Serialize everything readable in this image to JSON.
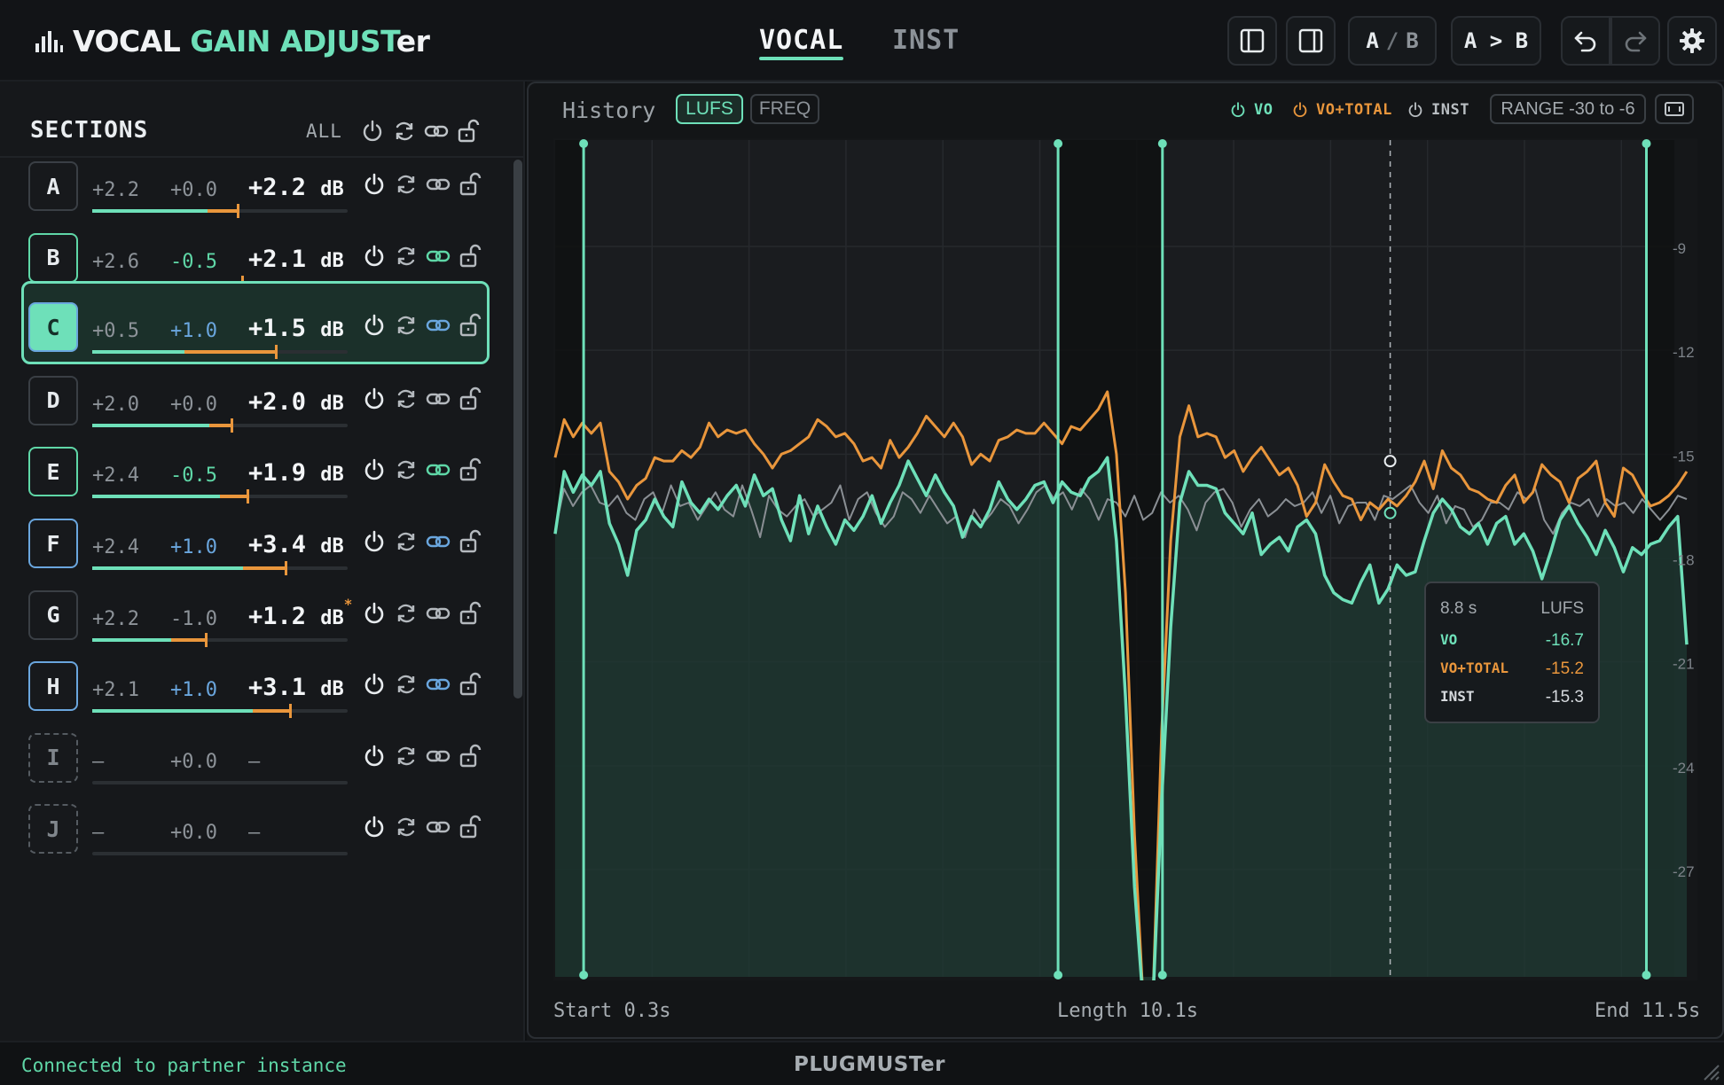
{
  "app": {
    "title_part1": "VOCAL",
    "title_part2": "GAIN ADJUST",
    "title_part3": "er"
  },
  "tabs": [
    {
      "label": "VOCAL",
      "active": true
    },
    {
      "label": "INST",
      "active": false
    }
  ],
  "header_buttons": {
    "ab_a": "A",
    "ab_slash": "/",
    "ab_b": "B",
    "copy_label": "A > B"
  },
  "sidebar": {
    "title": "SECTIONS",
    "all_label": "ALL",
    "rows": [
      {
        "letter": "A",
        "v1": "+2.2",
        "v2": "+0.0",
        "total": "+2.2",
        "unit": "dB",
        "style": "default",
        "v2_color": "gray",
        "link": "gray",
        "asterisk": "",
        "fill_g": 0.45,
        "fill_o": 0.12
      },
      {
        "letter": "B",
        "v1": "+2.6",
        "v2": "-0.5",
        "total": "+2.1",
        "unit": "dB",
        "style": "green",
        "v2_color": "green",
        "link": "green",
        "asterisk": "",
        "fill_g": 0.48,
        "fill_o": 0.11
      },
      {
        "letter": "C",
        "v1": "+0.5",
        "v2": "+1.0",
        "total": "+1.5",
        "unit": "dB",
        "style": "selected",
        "v2_color": "blue",
        "link": "blue",
        "asterisk": "",
        "fill_g": 0.36,
        "fill_o": 0.36
      },
      {
        "letter": "D",
        "v1": "+2.0",
        "v2": "+0.0",
        "total": "+2.0",
        "unit": "dB",
        "style": "default",
        "v2_color": "gray",
        "link": "gray",
        "asterisk": "",
        "fill_g": 0.46,
        "fill_o": 0.09
      },
      {
        "letter": "E",
        "v1": "+2.4",
        "v2": "-0.5",
        "total": "+1.9",
        "unit": "dB",
        "style": "green",
        "v2_color": "green",
        "link": "green",
        "asterisk": "",
        "fill_g": 0.5,
        "fill_o": 0.11
      },
      {
        "letter": "F",
        "v1": "+2.4",
        "v2": "+1.0",
        "total": "+3.4",
        "unit": "dB",
        "style": "blue",
        "v2_color": "blue",
        "link": "blue",
        "asterisk": "",
        "fill_g": 0.59,
        "fill_o": 0.17
      },
      {
        "letter": "G",
        "v1": "+2.2",
        "v2": "-1.0",
        "total": "+1.2",
        "unit": "dB",
        "style": "default",
        "v2_color": "gray",
        "link": "gray",
        "asterisk": "*",
        "fill_g": 0.31,
        "fill_o": 0.14
      },
      {
        "letter": "H",
        "v1": "+2.1",
        "v2": "+1.0",
        "total": "+3.1",
        "unit": "dB",
        "style": "blue",
        "v2_color": "blue",
        "link": "blue",
        "asterisk": "",
        "fill_g": 0.63,
        "fill_o": 0.15
      },
      {
        "letter": "I",
        "v1": "–",
        "v2": "+0.0",
        "total": "–",
        "unit": "",
        "style": "dashed",
        "v2_color": "gray",
        "link": "gray",
        "asterisk": "",
        "fill_g": 0,
        "fill_o": 0
      },
      {
        "letter": "J",
        "v1": "–",
        "v2": "+0.0",
        "total": "–",
        "unit": "",
        "style": "dashed",
        "v2_color": "gray",
        "link": "gray",
        "asterisk": "",
        "fill_g": 0,
        "fill_o": 0
      }
    ]
  },
  "history": {
    "label": "History",
    "mode_lufs": "LUFS",
    "mode_freq": "FREQ",
    "toggle_vo": "VO",
    "toggle_vo_total": "VO+TOTAL",
    "toggle_inst": "INST",
    "range_label": "RANGE -30 to -6",
    "footer_start": "Start 0.3s",
    "footer_length": "Length 10.1s",
    "footer_end": "End 11.5s"
  },
  "tooltip": {
    "time": "8.8 s",
    "unit": "LUFS",
    "rows": [
      {
        "name": "VO",
        "value": "-16.7",
        "color": "#6ee0b9"
      },
      {
        "name": "VO+TOTAL",
        "value": "-15.2",
        "color": "#e9963c"
      },
      {
        "name": "INST",
        "value": "-15.3",
        "color": "#d6dade"
      }
    ]
  },
  "chart_data": {
    "type": "line",
    "y_ticks": [
      "-9",
      "-12",
      "-15",
      "-18",
      "-21",
      "-24",
      "-27"
    ],
    "ylim": [
      -30,
      -6
    ],
    "x_range_s": [
      0,
      12
    ],
    "markers_s": [
      0.3,
      5.3,
      6.4,
      11.5
    ],
    "cursor_s": 8.8,
    "colors": {
      "vo": "#6ee0b9",
      "vo_total": "#e9963c",
      "inst": "#8a8f94"
    },
    "series": [
      {
        "name": "VO",
        "values": [
          -17.3,
          -15.5,
          -16.1,
          -15.6,
          -15.9,
          -15.5,
          -17.0,
          -17.6,
          -18.5,
          -17.2,
          -16.9,
          -16.3,
          -16.8,
          -17.1,
          -15.8,
          -16.4,
          -16.7,
          -16.3,
          -16.6,
          -16.2,
          -15.9,
          -16.5,
          -15.6,
          -16.2,
          -16.0,
          -16.9,
          -17.5,
          -16.2,
          -17.3,
          -16.5,
          -17.1,
          -17.6,
          -16.9,
          -17.2,
          -16.8,
          -16.2,
          -17.0,
          -16.4,
          -15.9,
          -15.2,
          -15.7,
          -16.2,
          -15.6,
          -16.1,
          -16.5,
          -17.4,
          -16.8,
          -17.1,
          -16.6,
          -15.8,
          -16.3,
          -16.6,
          -16.3,
          -15.9,
          -15.8,
          -16.4,
          -15.8,
          -16.1,
          -16.2,
          -15.7,
          -15.5,
          -15.1,
          -17.5,
          -22.0,
          -27.5,
          -31.0,
          -31.0,
          -25.0,
          -20.0,
          -16.4,
          -15.5,
          -15.9,
          -15.9,
          -16.0,
          -16.7,
          -17.0,
          -17.3,
          -16.7,
          -17.9,
          -17.6,
          -17.4,
          -17.8,
          -17.1,
          -16.9,
          -17.3,
          -18.5,
          -19.0,
          -19.2,
          -19.3,
          -18.7,
          -18.2,
          -19.3,
          -18.9,
          -18.2,
          -18.5,
          -18.4,
          -17.5,
          -16.7,
          -16.3,
          -16.6,
          -17.1,
          -17.3,
          -17.0,
          -17.6,
          -17.0,
          -16.8,
          -17.6,
          -17.3,
          -17.8,
          -18.6,
          -17.8,
          -16.9,
          -16.5,
          -17.0,
          -17.4,
          -17.9,
          -17.2,
          -17.7,
          -18.4,
          -17.7,
          -17.9,
          -17.6,
          -17.5,
          -17.1,
          -16.8,
          -20.5
        ]
      },
      {
        "name": "VO+TOTAL",
        "values": [
          -15.1,
          -14.0,
          -14.5,
          -14.1,
          -14.4,
          -14.1,
          -15.5,
          -15.8,
          -16.3,
          -15.9,
          -15.7,
          -15.1,
          -15.2,
          -15.2,
          -14.9,
          -15.1,
          -14.8,
          -14.1,
          -14.5,
          -14.3,
          -14.4,
          -14.3,
          -14.7,
          -15.0,
          -15.4,
          -15.0,
          -14.9,
          -14.7,
          -14.5,
          -14.0,
          -14.2,
          -14.5,
          -14.4,
          -14.7,
          -15.2,
          -15.1,
          -15.4,
          -14.6,
          -15.1,
          -14.8,
          -14.4,
          -13.9,
          -14.2,
          -14.5,
          -14.1,
          -14.5,
          -15.3,
          -15.0,
          -15.2,
          -14.6,
          -14.5,
          -14.3,
          -14.4,
          -14.4,
          -14.1,
          -14.4,
          -14.7,
          -14.2,
          -14.3,
          -14.0,
          -13.7,
          -13.2,
          -15.0,
          -19.0,
          -26.0,
          -31.0,
          -31.0,
          -23.0,
          -17.5,
          -14.5,
          -13.6,
          -14.5,
          -14.4,
          -14.5,
          -15.1,
          -14.9,
          -15.5,
          -15.1,
          -14.8,
          -15.2,
          -15.6,
          -15.4,
          -15.9,
          -16.8,
          -16.4,
          -15.3,
          -15.8,
          -16.2,
          -16.3,
          -16.9,
          -16.4,
          -16.6,
          -16.3,
          -16.5,
          -16.2,
          -15.8,
          -15.2,
          -16.0,
          -14.9,
          -15.4,
          -15.6,
          -16.0,
          -16.1,
          -16.3,
          -16.4,
          -15.9,
          -15.6,
          -16.4,
          -16.1,
          -15.3,
          -15.6,
          -15.8,
          -16.4,
          -15.7,
          -15.5,
          -15.2,
          -16.4,
          -16.8,
          -15.4,
          -15.6,
          -16.1,
          -16.5,
          -16.4,
          -16.2,
          -15.9,
          -15.5
        ]
      },
      {
        "name": "INST",
        "values": [
          -17.2,
          -16.0,
          -16.5,
          -16.1,
          -15.9,
          -16.4,
          -16.5,
          -16.2,
          -16.7,
          -16.9,
          -16.3,
          -16.1,
          -16.7,
          -15.9,
          -16.5,
          -16.4,
          -16.9,
          -16.5,
          -16.1,
          -16.6,
          -16.8,
          -15.9,
          -16.6,
          -17.4,
          -16.2,
          -16.6,
          -16.8,
          -16.5,
          -16.3,
          -16.8,
          -16.6,
          -16.4,
          -15.9,
          -16.9,
          -16.3,
          -16.1,
          -16.7,
          -17.1,
          -16.8,
          -16.1,
          -16.3,
          -16.7,
          -16.2,
          -16.6,
          -17.0,
          -16.8,
          -17.4,
          -16.6,
          -17.0,
          -16.7,
          -16.3,
          -16.5,
          -17.0,
          -16.6,
          -16.1,
          -15.9,
          -16.3,
          -16.1,
          -16.6,
          -16.0,
          -16.3,
          -16.9,
          -16.3,
          -16.4,
          -16.8,
          -16.2,
          -16.9,
          -16.7,
          -16.1,
          -16.4,
          -16.2,
          -16.6,
          -17.2,
          -16.4,
          -16.1,
          -16.0,
          -16.4,
          -17.1,
          -16.6,
          -16.3,
          -16.8,
          -16.6,
          -16.3,
          -16.5,
          -16.4,
          -16.1,
          -16.7,
          -16.2,
          -17.0,
          -16.5,
          -16.4,
          -16.4,
          -16.9,
          -16.2,
          -16.3,
          -16.1,
          -15.9,
          -16.4,
          -16.7,
          -16.2,
          -17.0,
          -16.5,
          -16.6,
          -17.1,
          -16.9,
          -16.4,
          -16.4,
          -16.6,
          -16.1,
          -16.3,
          -16.0,
          -16.9,
          -17.3,
          -16.7,
          -16.4,
          -16.5,
          -16.3,
          -16.8,
          -16.3,
          -16.5,
          -16.4,
          -16.7,
          -16.3,
          -16.6,
          -16.9,
          -16.6,
          -16.2,
          -16.3
        ]
      }
    ]
  }
}
